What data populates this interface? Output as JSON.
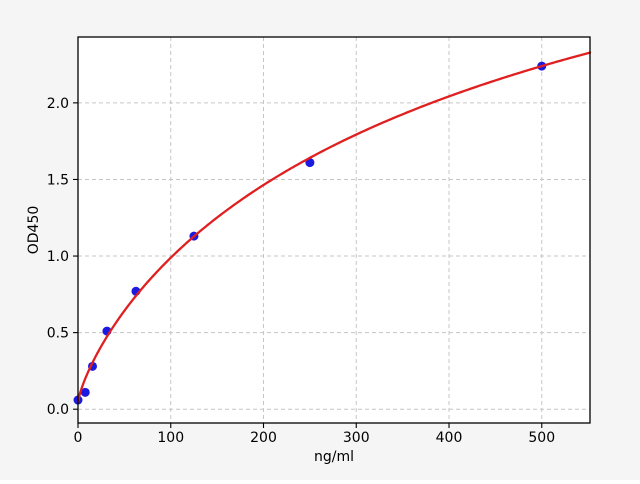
{
  "figure": {
    "background": "#f5f5f5",
    "plot_background": "#ffffff",
    "spine_color": "#000000",
    "grid_color": "#c6c6c6",
    "tick_color": "#000000",
    "text_color": "#000000"
  },
  "chart_data": {
    "type": "scatter",
    "title": "",
    "xlabel": "ng/ml",
    "ylabel": "OD450",
    "xlim": [
      0,
      552
    ],
    "ylim": [
      -0.09,
      2.43
    ],
    "x_tick_values": [
      0,
      100,
      200,
      300,
      400,
      500
    ],
    "x_tick_labels": [
      "0",
      "100",
      "200",
      "300",
      "400",
      "500"
    ],
    "y_tick_values": [
      0.0,
      0.5,
      1.0,
      1.5,
      2.0
    ],
    "y_tick_labels": [
      "0.0",
      "0.5",
      "1.0",
      "1.5",
      "2.0"
    ],
    "grid": true,
    "legend": "none",
    "series": [
      {
        "name": "standards",
        "type": "scatter",
        "color": "#1a1ae0",
        "points": [
          {
            "x": 0,
            "y": 0.06
          },
          {
            "x": 7.8,
            "y": 0.11
          },
          {
            "x": 15.625,
            "y": 0.28
          },
          {
            "x": 31.25,
            "y": 0.51
          },
          {
            "x": 62.5,
            "y": 0.77
          },
          {
            "x": 125,
            "y": 1.13
          },
          {
            "x": 250,
            "y": 1.61
          },
          {
            "x": 500,
            "y": 2.24
          }
        ]
      },
      {
        "name": "fitted-curve",
        "type": "line",
        "color": "#e02020",
        "curve_fit": {
          "model": "4PL",
          "a": 0.05,
          "b": 0.8,
          "c": 520,
          "d": 4.5,
          "x_range": [
            0,
            552
          ]
        }
      }
    ]
  }
}
